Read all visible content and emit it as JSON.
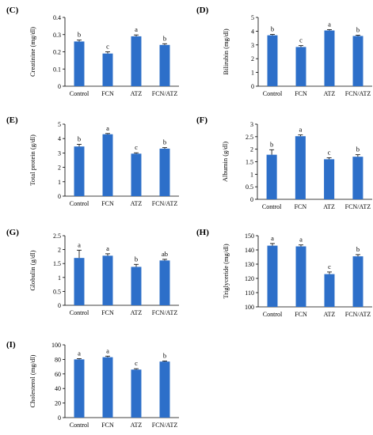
{
  "colors": {
    "bar": "#2d6fc9",
    "axis": "#000000",
    "error": "#000000"
  },
  "chart_data": [
    {
      "panel": "(C)",
      "type": "bar",
      "categories": [
        "Control",
        "FCN",
        "ATZ",
        "FCN/ATZ"
      ],
      "values": [
        0.26,
        0.19,
        0.29,
        0.24
      ],
      "errors": [
        0.008,
        0.01,
        0.008,
        0.007
      ],
      "significance": [
        "b",
        "c",
        "a",
        "b"
      ],
      "ylabel": "Creatinine (mg/dl)",
      "ylim": [
        0,
        0.4
      ],
      "yticks": [
        "0",
        "0.1",
        "0.2",
        "0.3",
        "0.4"
      ]
    },
    {
      "panel": "(D)",
      "type": "bar",
      "categories": [
        "Control",
        "FCN",
        "ATZ",
        "FCN/ATZ"
      ],
      "values": [
        3.7,
        2.85,
        4.05,
        3.65
      ],
      "errors": [
        0.06,
        0.1,
        0.06,
        0.06
      ],
      "significance": [
        "b",
        "c",
        "a",
        "b"
      ],
      "ylabel": "Bilirubin (mg/dl)",
      "ylim": [
        0,
        5
      ],
      "yticks": [
        "0",
        "1",
        "2",
        "3",
        "4",
        "5"
      ]
    },
    {
      "panel": "(E)",
      "type": "bar",
      "categories": [
        "Control",
        "FCN",
        "ATZ",
        "FCN/ATZ"
      ],
      "values": [
        3.45,
        4.3,
        2.95,
        3.3
      ],
      "errors": [
        0.15,
        0.05,
        0.06,
        0.07
      ],
      "significance": [
        "b",
        "a",
        "c",
        "b"
      ],
      "ylabel": "Total protein (g/dl)",
      "ylim": [
        0,
        5
      ],
      "yticks": [
        "0",
        "1",
        "2",
        "3",
        "4",
        "5"
      ]
    },
    {
      "panel": "(F)",
      "type": "bar",
      "categories": [
        "Control",
        "FCN",
        "ATZ",
        "FCN/ATZ"
      ],
      "values": [
        1.78,
        2.52,
        1.6,
        1.7
      ],
      "errors": [
        0.2,
        0.05,
        0.06,
        0.08
      ],
      "significance": [
        "b",
        "a",
        "c",
        "b"
      ],
      "ylabel": "Albumin (g/dl)",
      "ylim": [
        0,
        3
      ],
      "yticks": [
        "0",
        "0.5",
        "1",
        "1.5",
        "2",
        "2.5",
        "3"
      ]
    },
    {
      "panel": "(G)",
      "type": "bar",
      "categories": [
        "Control",
        "FCN",
        "ATZ",
        "FCN/ATZ"
      ],
      "values": [
        1.7,
        1.78,
        1.38,
        1.61
      ],
      "errors": [
        0.28,
        0.07,
        0.09,
        0.04
      ],
      "significance": [
        "a",
        "a",
        "b",
        "ab"
      ],
      "ylabel": "Globulin (g/dl)",
      "ylim": [
        0,
        2.5
      ],
      "yticks": [
        "0",
        "0.5",
        "1",
        "1.5",
        "2",
        "2.5"
      ]
    },
    {
      "panel": "(H)",
      "type": "bar",
      "categories": [
        "Control",
        "FCN",
        "ATZ",
        "FCN/ATZ"
      ],
      "values": [
        143,
        142.5,
        123,
        135.5
      ],
      "errors": [
        1.5,
        1.0,
        1.5,
        1.2
      ],
      "significance": [
        "a",
        "a",
        "c",
        "b"
      ],
      "ylabel": "Triglyceride (mg/dl)",
      "ylim": [
        100,
        150
      ],
      "yticks": [
        "100",
        "110",
        "120",
        "130",
        "140",
        "150"
      ]
    },
    {
      "panel": "(I)",
      "type": "bar",
      "categories": [
        "Control",
        "FCN",
        "ATZ",
        "FCN/ATZ"
      ],
      "values": [
        80,
        83,
        66,
        77
      ],
      "errors": [
        1.0,
        1.5,
        1.2,
        0.8
      ],
      "significance": [
        "a",
        "a",
        "c",
        "b"
      ],
      "ylabel": "Cholesterol (mg/dl)",
      "ylim": [
        0,
        100
      ],
      "yticks": [
        "0",
        "20",
        "40",
        "60",
        "80",
        "100"
      ]
    }
  ]
}
